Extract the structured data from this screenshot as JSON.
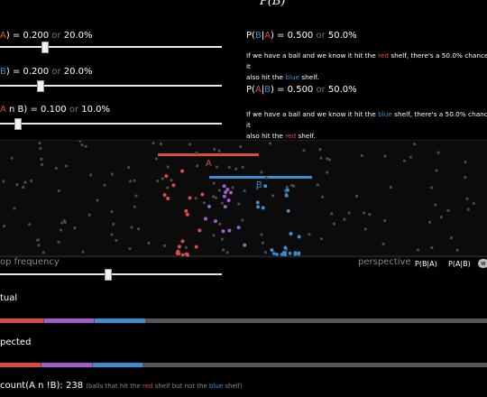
{
  "header": {
    "title": "P(B)"
  },
  "left": {
    "pa": {
      "prefix": "A) = 0.200",
      "or": "or",
      "pct": "20.0%",
      "value": 0.2
    },
    "pb": {
      "prefix": "B) = 0.200",
      "or": "or",
      "pct": "20.0%",
      "value": 0.2
    },
    "pab": {
      "prefix": "A n B) = 0.100",
      "or": "or",
      "pct": "10.0%",
      "value": 0.1
    }
  },
  "right": {
    "p_b_given_a": {
      "label": "P(B|A) = 0.500",
      "or": "or",
      "pct": "50.0%"
    },
    "text1": {
      "pre": "If we have a ball and we know it hit the ",
      "shelf": "red",
      "mid": " shelf, there's a 50.0% chance it",
      "line2_pre": "also hit the ",
      "shelf2": "blue",
      "line2_post": " shelf."
    },
    "p_a_given_b": {
      "label": "P(A|B) = 0.500",
      "or": "or",
      "pct": "50.0%"
    },
    "text2": {
      "pre": "If we have a ball and we know it hit the ",
      "shelf": "blue",
      "mid": " shelf, there's a 50.0% chance it",
      "line2_pre": "also hit the ",
      "shelf2": "red",
      "line2_post": " shelf."
    }
  },
  "sim": {
    "shelf_a_label": "A",
    "shelf_b_label": "B",
    "colors": {
      "red": "#d94b43",
      "purple": "#a35bc9",
      "blue": "#3b8ed1",
      "gray": "#555555"
    }
  },
  "controls": {
    "drop_frequency_label": "op frequency",
    "drop_frequency_value": 0.24,
    "perspective_label": "perspective",
    "perspective_options": [
      "P(B|A)",
      "P(A|B)",
      "w"
    ]
  },
  "actual": {
    "label": "tual",
    "segments": [
      0.09,
      0.105,
      0.105,
      0.7
    ]
  },
  "expected": {
    "label": "pected",
    "segments": [
      0.085,
      0.105,
      0.105,
      0.705
    ]
  },
  "footer": {
    "count": "count(A n !B): 238",
    "desc_pre": "(balls that hit the ",
    "desc_red": "red",
    "desc_mid": " shelf but not the ",
    "desc_blue": "blue",
    "desc_post": " shelf)"
  }
}
